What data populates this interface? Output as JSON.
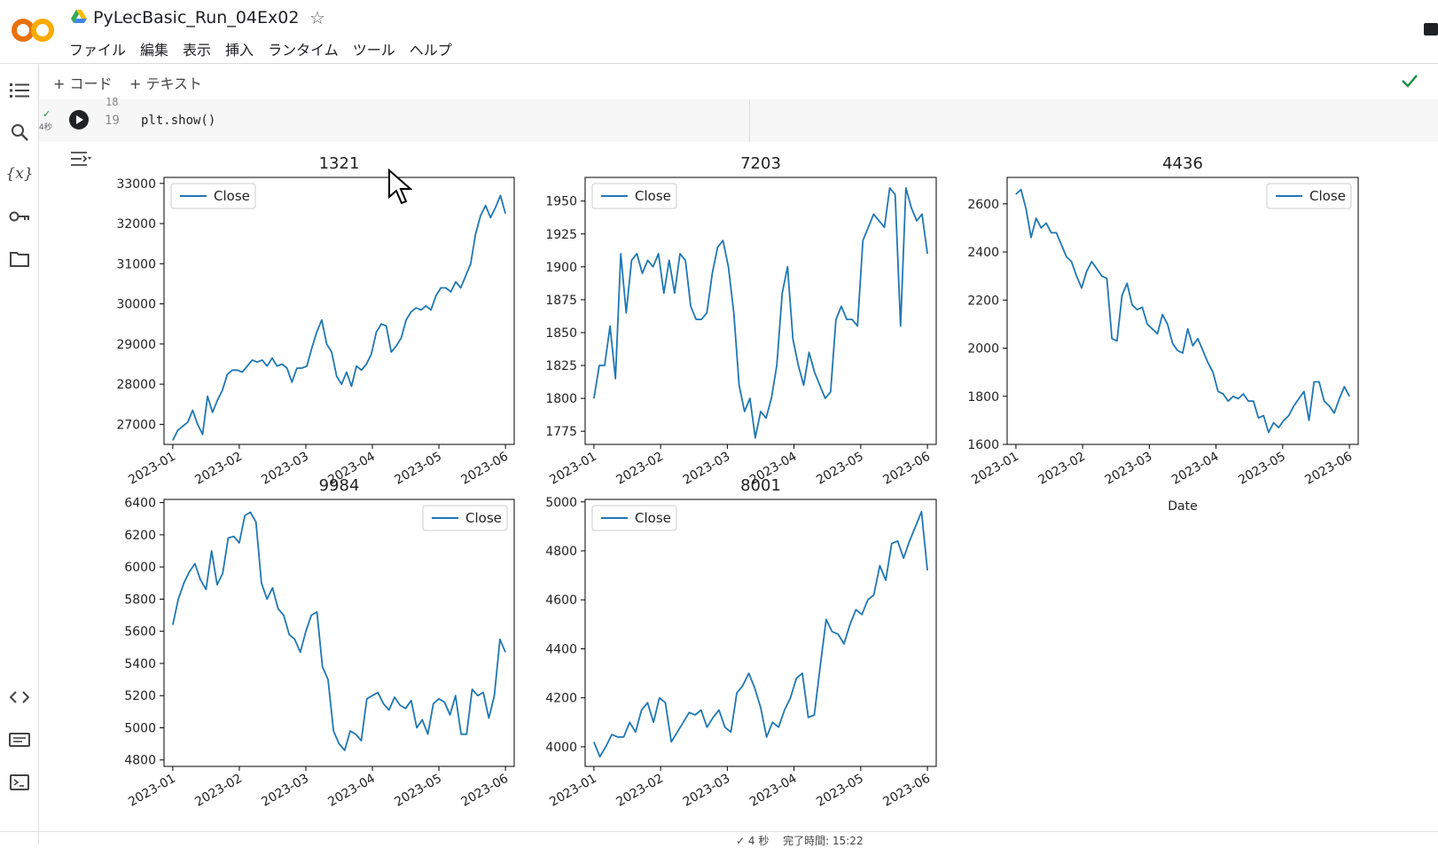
{
  "app": {
    "doc_title": "PyLecBasic_Run_04Ex02"
  },
  "menu": [
    "ファイル",
    "編集",
    "表示",
    "挿入",
    "ランタイム",
    "ツール",
    "ヘルプ"
  ],
  "toolbar": {
    "code_label": "コード",
    "text_label": "テキスト"
  },
  "cell": {
    "line_top": "18",
    "line_num": "19",
    "code": "plt.show()",
    "exec_time": "4秒"
  },
  "status": {
    "text": "✓ 4 秒　 完了時間: 15:22"
  },
  "colors": {
    "line": "#1f77b4",
    "accent": "#1e8e3e",
    "logo_orange": "#f9ab00",
    "logo_dark": "#e8710a"
  },
  "chart_data": [
    {
      "type": "line",
      "title": "1321",
      "legend": [
        "Close"
      ],
      "legend_loc": "upper-left",
      "xlabel": "",
      "x_ticks": [
        "2023-01",
        "2023-02",
        "2023-03",
        "2023-04",
        "2023-05",
        "2023-06"
      ],
      "y_ticks": [
        27000,
        28000,
        29000,
        30000,
        31000,
        32000,
        33000
      ],
      "ylim": [
        26500,
        33150
      ],
      "series": [
        {
          "name": "Close",
          "values": [
            26600,
            26850,
            26950,
            27050,
            27350,
            27000,
            26750,
            27700,
            27300,
            27600,
            27850,
            28250,
            28350,
            28350,
            28300,
            28450,
            28600,
            28550,
            28600,
            28450,
            28650,
            28450,
            28500,
            28400,
            28050,
            28400,
            28400,
            28450,
            28900,
            29300,
            29600,
            29000,
            28800,
            28200,
            28000,
            28300,
            27950,
            28450,
            28350,
            28500,
            28750,
            29300,
            29500,
            29450,
            28800,
            28950,
            29150,
            29600,
            29800,
            29900,
            29850,
            29950,
            29850,
            30200,
            30400,
            30400,
            30300,
            30550,
            30400,
            30700,
            31000,
            31750,
            32200,
            32450,
            32150,
            32400,
            32700,
            32250
          ]
        }
      ]
    },
    {
      "type": "line",
      "title": "7203",
      "legend": [
        "Close"
      ],
      "legend_loc": "upper-left",
      "xlabel": "",
      "x_ticks": [
        "2023-01",
        "2023-02",
        "2023-03",
        "2023-04",
        "2023-05",
        "2023-06"
      ],
      "y_ticks": [
        1775,
        1800,
        1825,
        1850,
        1875,
        1900,
        1925,
        1950
      ],
      "ylim": [
        1765,
        1968
      ],
      "series": [
        {
          "name": "Close",
          "values": [
            1800,
            1825,
            1825,
            1855,
            1815,
            1910,
            1865,
            1905,
            1910,
            1895,
            1905,
            1900,
            1910,
            1880,
            1905,
            1880,
            1910,
            1905,
            1870,
            1860,
            1860,
            1865,
            1895,
            1915,
            1920,
            1900,
            1865,
            1810,
            1790,
            1800,
            1770,
            1790,
            1785,
            1800,
            1825,
            1880,
            1900,
            1845,
            1825,
            1810,
            1835,
            1820,
            1810,
            1800,
            1805,
            1860,
            1870,
            1860,
            1860,
            1855,
            1920,
            1930,
            1940,
            1935,
            1930,
            1960,
            1955,
            1855,
            1960,
            1945,
            1935,
            1940,
            1910
          ]
        }
      ]
    },
    {
      "type": "line",
      "title": "4436",
      "legend": [
        "Close"
      ],
      "legend_loc": "upper-right",
      "xlabel": "Date",
      "x_ticks": [
        "2023-01",
        "2023-02",
        "2023-03",
        "2023-04",
        "2023-05",
        "2023-06"
      ],
      "y_ticks": [
        1600,
        1800,
        2000,
        2200,
        2400,
        2600
      ],
      "ylim": [
        1600,
        2710
      ],
      "series": [
        {
          "name": "Close",
          "values": [
            2640,
            2660,
            2580,
            2460,
            2540,
            2500,
            2520,
            2480,
            2480,
            2430,
            2380,
            2360,
            2300,
            2250,
            2320,
            2360,
            2330,
            2300,
            2290,
            2040,
            2030,
            2220,
            2270,
            2180,
            2160,
            2170,
            2100,
            2080,
            2060,
            2140,
            2100,
            2020,
            1990,
            1980,
            2080,
            2010,
            2040,
            1990,
            1940,
            1900,
            1820,
            1810,
            1780,
            1800,
            1790,
            1810,
            1780,
            1780,
            1710,
            1720,
            1650,
            1690,
            1670,
            1700,
            1720,
            1760,
            1790,
            1820,
            1700,
            1860,
            1860,
            1780,
            1760,
            1730,
            1790,
            1840,
            1800
          ]
        }
      ]
    },
    {
      "type": "line",
      "title": "9984",
      "legend": [
        "Close"
      ],
      "legend_loc": "upper-right",
      "xlabel": "",
      "x_ticks": [
        "2023-01",
        "2023-02",
        "2023-03",
        "2023-04",
        "2023-05",
        "2023-06"
      ],
      "y_ticks": [
        4800,
        5000,
        5200,
        5400,
        5600,
        5800,
        6000,
        6200,
        6400
      ],
      "ylim": [
        4760,
        6420
      ],
      "series": [
        {
          "name": "Close",
          "values": [
            5640,
            5800,
            5900,
            5970,
            6020,
            5920,
            5860,
            6100,
            5890,
            5960,
            6180,
            6190,
            6150,
            6320,
            6340,
            6280,
            5900,
            5800,
            5870,
            5740,
            5700,
            5580,
            5550,
            5470,
            5600,
            5700,
            5720,
            5380,
            5300,
            4980,
            4900,
            4860,
            4980,
            4960,
            4920,
            5180,
            5200,
            5220,
            5150,
            5110,
            5190,
            5140,
            5120,
            5170,
            5000,
            5050,
            4960,
            5150,
            5180,
            5160,
            5080,
            5200,
            4960,
            4960,
            5240,
            5200,
            5220,
            5060,
            5200,
            5550,
            5470
          ]
        }
      ]
    },
    {
      "type": "line",
      "title": "8001",
      "legend": [
        "Close"
      ],
      "legend_loc": "upper-left",
      "xlabel": "",
      "x_ticks": [
        "2023-01",
        "2023-02",
        "2023-03",
        "2023-04",
        "2023-05",
        "2023-06"
      ],
      "y_ticks": [
        4000,
        4200,
        4400,
        4600,
        4800,
        5000
      ],
      "ylim": [
        3920,
        5010
      ],
      "series": [
        {
          "name": "Close",
          "values": [
            4020,
            3960,
            4000,
            4050,
            4040,
            4040,
            4100,
            4060,
            4150,
            4180,
            4100,
            4200,
            4180,
            4020,
            4060,
            4100,
            4140,
            4130,
            4150,
            4080,
            4120,
            4150,
            4080,
            4060,
            4220,
            4250,
            4300,
            4240,
            4160,
            4040,
            4100,
            4080,
            4150,
            4200,
            4280,
            4300,
            4120,
            4130,
            4330,
            4520,
            4470,
            4460,
            4420,
            4500,
            4560,
            4540,
            4600,
            4620,
            4740,
            4680,
            4830,
            4840,
            4770,
            4840,
            4900,
            4960,
            4720
          ]
        }
      ]
    }
  ]
}
